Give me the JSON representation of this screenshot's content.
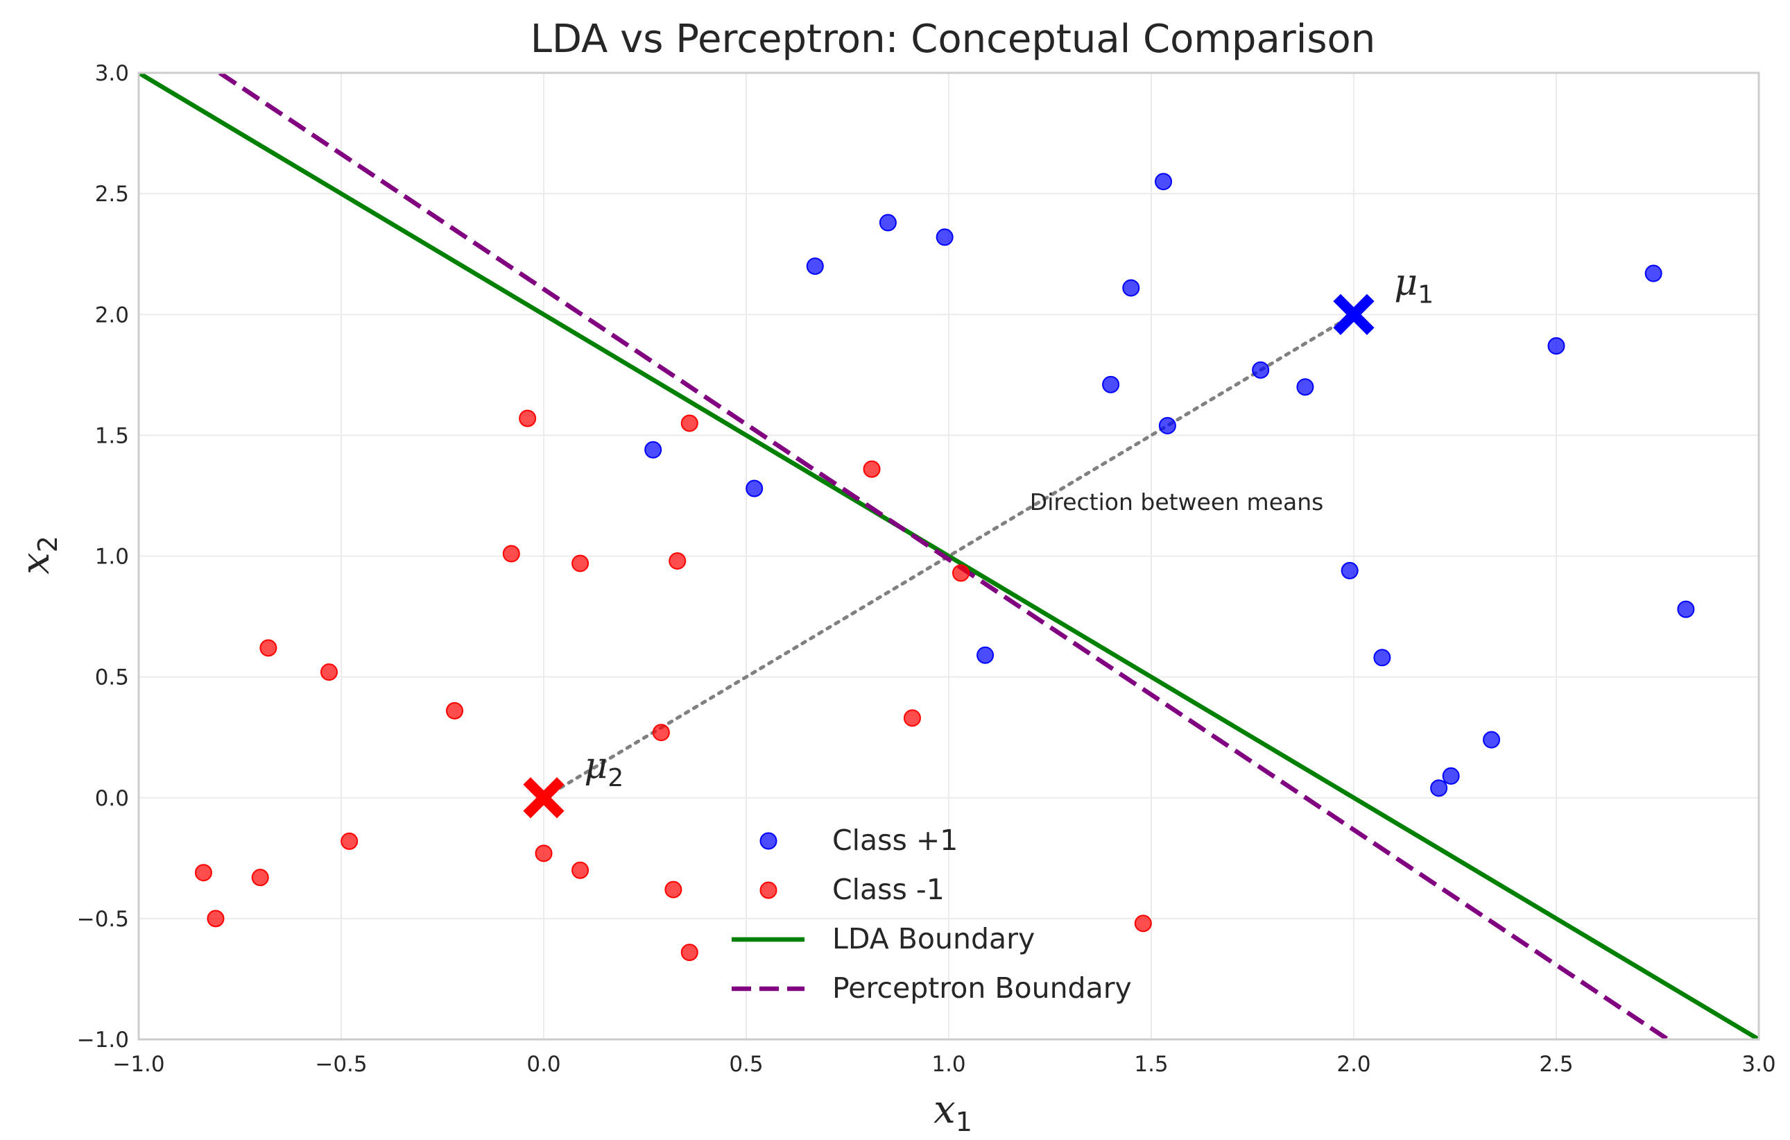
{
  "chart_data": {
    "type": "scatter",
    "title": "LDA vs Perceptron: Conceptual Comparison",
    "xlabel_base": "x",
    "xlabel_sub": "1",
    "ylabel_base": "x",
    "ylabel_sub": "2",
    "xlim": [
      -1.0,
      3.0
    ],
    "ylim": [
      -1.0,
      3.0
    ],
    "xticks": [
      -1.0,
      -0.5,
      0.0,
      0.5,
      1.0,
      1.5,
      2.0,
      2.5,
      3.0
    ],
    "yticks": [
      -1.0,
      -0.5,
      0.0,
      0.5,
      1.0,
      1.5,
      2.0,
      2.5,
      3.0
    ],
    "xtick_labels": [
      "−1.0",
      "−0.5",
      "0.0",
      "0.5",
      "1.0",
      "1.5",
      "2.0",
      "2.5",
      "3.0"
    ],
    "ytick_labels": [
      "−1.0",
      "−0.5",
      "0.0",
      "0.5",
      "1.0",
      "1.5",
      "2.0",
      "2.5",
      "3.0"
    ],
    "grid": true,
    "legend_position": "lower-center",
    "series": [
      {
        "name": "Class +1",
        "kind": "scatter",
        "color": "#0000ff",
        "points": [
          [
            0.27,
            1.44
          ],
          [
            0.52,
            1.28
          ],
          [
            0.67,
            2.2
          ],
          [
            0.85,
            2.38
          ],
          [
            0.99,
            2.32
          ],
          [
            1.09,
            0.59
          ],
          [
            1.4,
            1.71
          ],
          [
            1.45,
            2.11
          ],
          [
            1.53,
            2.55
          ],
          [
            1.54,
            1.54
          ],
          [
            1.77,
            1.77
          ],
          [
            1.88,
            1.7
          ],
          [
            1.99,
            0.94
          ],
          [
            2.07,
            0.58
          ],
          [
            2.21,
            0.04
          ],
          [
            2.24,
            0.09
          ],
          [
            2.34,
            0.24
          ],
          [
            2.5,
            1.87
          ],
          [
            2.74,
            2.17
          ],
          [
            2.82,
            0.78
          ]
        ]
      },
      {
        "name": "Class -1",
        "kind": "scatter",
        "color": "#ff0000",
        "points": [
          [
            -0.84,
            -0.31
          ],
          [
            -0.81,
            -0.5
          ],
          [
            -0.7,
            -0.33
          ],
          [
            -0.68,
            0.62
          ],
          [
            -0.53,
            0.52
          ],
          [
            -0.48,
            -0.18
          ],
          [
            -0.22,
            0.36
          ],
          [
            -0.08,
            1.01
          ],
          [
            -0.04,
            1.57
          ],
          [
            0.0,
            -0.23
          ],
          [
            0.09,
            -0.3
          ],
          [
            0.09,
            0.97
          ],
          [
            0.29,
            0.27
          ],
          [
            0.32,
            -0.38
          ],
          [
            0.33,
            0.98
          ],
          [
            0.36,
            1.55
          ],
          [
            0.36,
            -0.64
          ],
          [
            0.81,
            1.36
          ],
          [
            0.91,
            0.33
          ],
          [
            1.03,
            0.93
          ],
          [
            1.48,
            -0.52
          ]
        ]
      },
      {
        "name": "LDA Boundary",
        "kind": "line",
        "color": "#008000",
        "style": "solid",
        "x": [
          -1.0,
          3.0
        ],
        "y": [
          3.0,
          -1.0
        ]
      },
      {
        "name": "Perceptron Boundary",
        "kind": "line",
        "color": "#800080",
        "style": "dashed",
        "x": [
          -0.8,
          2.82
        ],
        "y": [
          3.0,
          -1.05
        ]
      }
    ],
    "means_line": {
      "x": [
        0.0,
        2.0
      ],
      "y": [
        0.0,
        2.0
      ],
      "color": "#808080",
      "style": "dotted"
    },
    "markers": [
      {
        "label_base": "μ",
        "label_sub": "1",
        "x": 2.0,
        "y": 2.0,
        "color": "#0000ff",
        "label_x": 2.1,
        "label_y": 2.1
      },
      {
        "label_base": "μ",
        "label_sub": "2",
        "x": 0.0,
        "y": 0.0,
        "color": "#ff0000",
        "label_x": 0.1,
        "label_y": 0.1
      }
    ],
    "annotations": [
      {
        "text": "Direction between means",
        "x": 1.2,
        "y": 1.22
      }
    ],
    "legend": [
      {
        "label": "Class +1",
        "kind": "scatter",
        "color": "#0000ff"
      },
      {
        "label": "Class -1",
        "kind": "scatter",
        "color": "#ff0000"
      },
      {
        "label": "LDA Boundary",
        "kind": "line",
        "color": "#008000",
        "style": "solid"
      },
      {
        "label": "Perceptron Boundary",
        "kind": "line",
        "color": "#800080",
        "style": "dashed"
      }
    ]
  }
}
